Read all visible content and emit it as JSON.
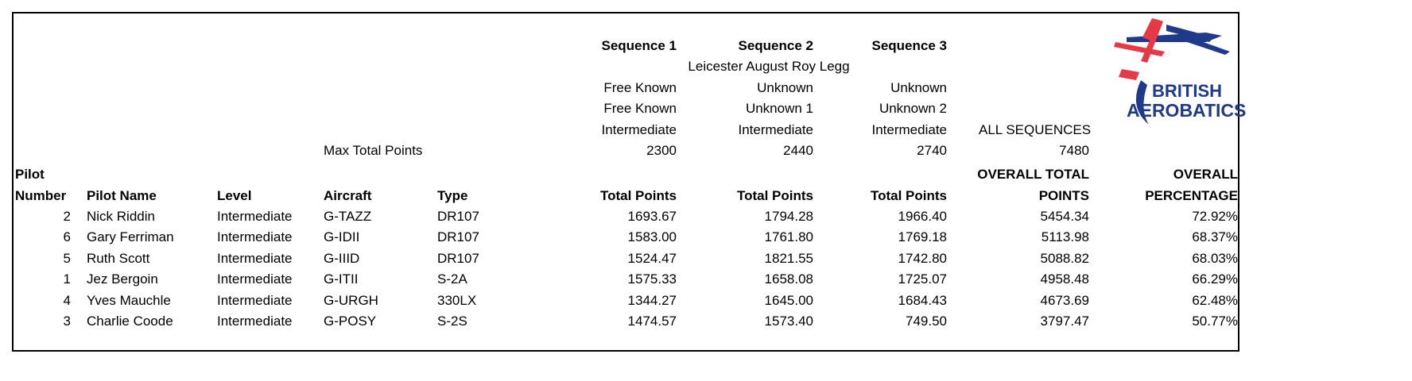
{
  "sequences": [
    {
      "title": "Sequence 1",
      "name": "Free Known",
      "code": "Free Known",
      "level": "Intermediate",
      "max": "2300"
    },
    {
      "title": "Sequence 2",
      "name": "Unknown",
      "code": "Unknown 1",
      "level": "Intermediate",
      "max": "2440"
    },
    {
      "title": "Sequence 3",
      "name": "Unknown",
      "code": "Unknown 2",
      "level": "Intermediate",
      "max": "2740"
    }
  ],
  "competition": "Leicester August Roy Legg",
  "max_total_label": "Max Total Points",
  "all_sequences": {
    "label": "ALL SEQUENCES",
    "max": "7480"
  },
  "headers": {
    "pilot": "Pilot",
    "number": "Number",
    "pilot_name": "Pilot Name",
    "level": "Level",
    "aircraft": "Aircraft",
    "type": "Type",
    "total_points": "Total Points",
    "overall_total_1": "OVERALL TOTAL",
    "overall_total_2": "POINTS",
    "overall_pct_1": "OVERALL",
    "overall_pct_2": "PERCENTAGE"
  },
  "rows": [
    {
      "number": "2",
      "name": "Nick Riddin",
      "level": "Intermediate",
      "aircraft": "G-TAZZ",
      "type": "DR107",
      "s1": "1693.67",
      "s2": "1794.28",
      "s3": "1966.40",
      "total": "5454.34",
      "pct": "72.92%"
    },
    {
      "number": "6",
      "name": "Gary Ferriman",
      "level": "Intermediate",
      "aircraft": "G-IDII",
      "type": "DR107",
      "s1": "1583.00",
      "s2": "1761.80",
      "s3": "1769.18",
      "total": "5113.98",
      "pct": "68.37%"
    },
    {
      "number": "5",
      "name": "Ruth Scott",
      "level": "Intermediate",
      "aircraft": "G-IIID",
      "type": "DR107",
      "s1": "1524.47",
      "s2": "1821.55",
      "s3": "1742.80",
      "total": "5088.82",
      "pct": "68.03%"
    },
    {
      "number": "1",
      "name": "Jez Bergoin",
      "level": "Intermediate",
      "aircraft": "G-ITII",
      "type": "S-2A",
      "s1": "1575.33",
      "s2": "1658.08",
      "s3": "1725.07",
      "total": "4958.48",
      "pct": "66.29%"
    },
    {
      "number": "4",
      "name": "Yves Mauchle",
      "level": "Intermediate",
      "aircraft": "G-URGH",
      "type": "330LX",
      "s1": "1344.27",
      "s2": "1645.00",
      "s3": "1684.43",
      "total": "4673.69",
      "pct": "62.48%"
    },
    {
      "number": "3",
      "name": "Charlie Coode",
      "level": "Intermediate",
      "aircraft": "G-POSY",
      "type": "S-2S",
      "s1": "1474.57",
      "s2": "1573.40",
      "s3": "749.50",
      "total": "3797.47",
      "pct": "50.77%"
    }
  ],
  "logo": {
    "line1": "BRITISH",
    "line2": "AEROBATICS",
    "primary": "#1f3a8a",
    "accent": "#e63946"
  }
}
